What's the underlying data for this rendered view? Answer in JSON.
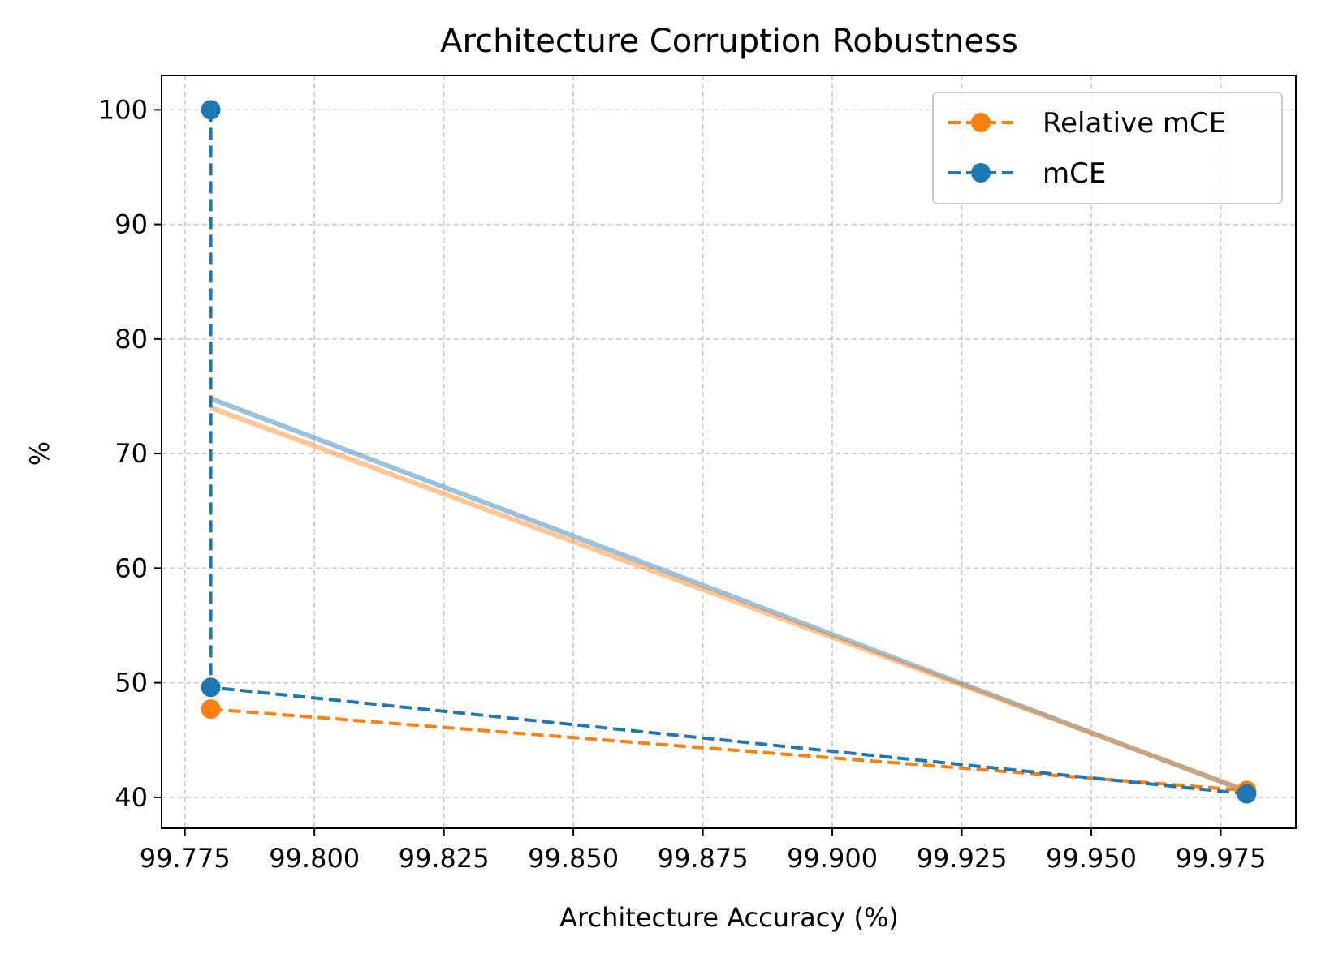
{
  "chart_data": {
    "type": "line",
    "title": "Architecture Corruption Robustness",
    "xlabel": "Architecture Accuracy (%)",
    "ylabel": "%",
    "xlim": [
      99.7705,
      99.9895
    ],
    "ylim": [
      37.3,
      103.0
    ],
    "xticks": [
      99.775,
      99.8,
      99.825,
      99.85,
      99.875,
      99.9,
      99.925,
      99.95,
      99.975
    ],
    "xtick_labels": [
      "99.775",
      "99.800",
      "99.825",
      "99.850",
      "99.875",
      "99.900",
      "99.925",
      "99.950",
      "99.975"
    ],
    "yticks": [
      40,
      50,
      60,
      70,
      80,
      90,
      100
    ],
    "ytick_labels": [
      "40",
      "50",
      "60",
      "70",
      "80",
      "90",
      "100"
    ],
    "grid": true,
    "legend_position": "top-right",
    "series": [
      {
        "name": "Relative mCE",
        "color": "#ff7f0e",
        "style": "dashed",
        "marker": "circle",
        "x": [
          99.78,
          99.98
        ],
        "y": [
          47.7,
          40.6
        ]
      },
      {
        "name": "mCE",
        "color": "#1f77b4",
        "style": "dashed",
        "marker": "circle",
        "x": [
          99.78,
          99.78,
          99.98
        ],
        "y": [
          100.0,
          49.6,
          40.3
        ]
      }
    ],
    "trend_lines": [
      {
        "series": "mCE",
        "color": "#1f77b4",
        "x": [
          99.78,
          99.98
        ],
        "y": [
          74.8,
          40.5
        ]
      },
      {
        "series": "Relative mCE",
        "color": "#ff7f0e",
        "x": [
          99.78,
          99.98
        ],
        "y": [
          74.0,
          40.6
        ]
      }
    ]
  }
}
